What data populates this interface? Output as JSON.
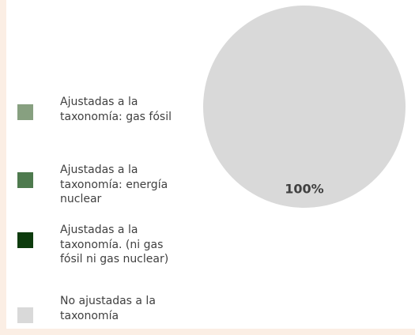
{
  "chart_data": {
    "type": "pie",
    "categories": [
      "Ajustadas a la taxonomía: gas fósil",
      "Ajustadas a la taxonomía: energía nuclear",
      "Ajustadas a la taxonomía. (ni gas fósil ni gas nuclear)",
      "No ajustadas a la taxonomía"
    ],
    "values": [
      0,
      0,
      0,
      100
    ],
    "value_labels": [
      null,
      null,
      null,
      "100%"
    ],
    "colors": [
      "#87a080",
      "#4e7a4e",
      "#0d3b0d",
      "#d9d9d9"
    ],
    "legend": "left"
  }
}
